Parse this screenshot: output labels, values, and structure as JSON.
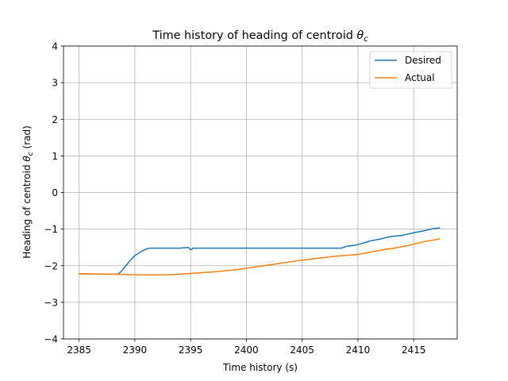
{
  "chart_data": {
    "type": "line",
    "title_main": "Time history of heading of centroid ",
    "title_symbol": "θ",
    "title_sub": "c",
    "xlabel": "Time history (s)",
    "ylabel_main": "Heading of centroid ",
    "ylabel_symbol": "θ",
    "ylabel_sub": "c",
    "ylabel_unit": " (rad)",
    "xlim": [
      2383.6,
      2418.9
    ],
    "ylim": [
      -4,
      4
    ],
    "xticks": [
      2385,
      2390,
      2395,
      2400,
      2405,
      2410,
      2415
    ],
    "yticks": [
      -4,
      -3,
      -2,
      -1,
      0,
      1,
      2,
      3,
      4
    ],
    "grid": true,
    "legend_position": "top-right",
    "series": [
      {
        "name": "Desired",
        "color": "#1f77b4",
        "x": [
          2385.0,
          2387.0,
          2388.5,
          2388.8,
          2389.2,
          2389.6,
          2390.0,
          2390.4,
          2390.8,
          2391.3,
          2392.0,
          2394.0,
          2394.8,
          2395.0,
          2395.2,
          2396.0,
          2400.0,
          2405.0,
          2408.5,
          2409.0,
          2409.8,
          2410.5,
          2411.0,
          2412.0,
          2413.0,
          2414.0,
          2415.0,
          2416.0,
          2416.7,
          2417.3
        ],
        "y": [
          -2.22,
          -2.23,
          -2.23,
          -2.15,
          -2.0,
          -1.85,
          -1.72,
          -1.65,
          -1.57,
          -1.52,
          -1.52,
          -1.52,
          -1.5,
          -1.57,
          -1.52,
          -1.52,
          -1.52,
          -1.52,
          -1.52,
          -1.47,
          -1.44,
          -1.38,
          -1.33,
          -1.27,
          -1.2,
          -1.17,
          -1.1,
          -1.04,
          -0.99,
          -0.97
        ]
      },
      {
        "name": "Actual",
        "color": "#ff7f0e",
        "x": [
          2385.0,
          2388.0,
          2390.0,
          2393.0,
          2395.0,
          2397.0,
          2399.0,
          2400.0,
          2402.0,
          2404.0,
          2406.0,
          2408.0,
          2410.0,
          2412.0,
          2414.0,
          2416.0,
          2417.3
        ],
        "y": [
          -2.22,
          -2.23,
          -2.25,
          -2.25,
          -2.21,
          -2.17,
          -2.11,
          -2.07,
          -1.98,
          -1.89,
          -1.81,
          -1.74,
          -1.69,
          -1.58,
          -1.48,
          -1.34,
          -1.27
        ]
      }
    ]
  }
}
